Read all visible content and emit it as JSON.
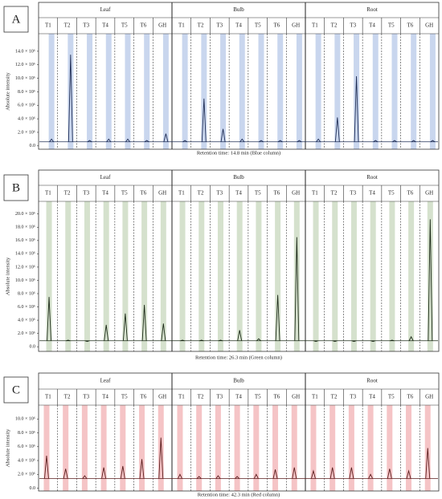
{
  "chart_data": [
    {
      "type": "line",
      "label": "A",
      "ylabel": "Absolute intensity",
      "xlabel": "Retention time: 14.8 min (Blue column)",
      "band_color": "#c9d6ee",
      "baseline": 600000,
      "categories": [
        "T1",
        "T2",
        "T3",
        "T4",
        "T5",
        "T6",
        "GH"
      ],
      "series": [
        {
          "name": "Leaf",
          "color": "#1f2d55",
          "values": [
            1000000,
            13500000,
            800000,
            1000000,
            1000000,
            800000,
            1800000
          ]
        },
        {
          "name": "Bulb",
          "color": "#1f2d55",
          "values": [
            800000,
            7000000,
            2500000,
            1000000,
            800000,
            800000,
            800000
          ]
        },
        {
          "name": "Root",
          "color": "#1f2d55",
          "values": [
            1000000,
            4200000,
            10300000,
            800000,
            800000,
            800000,
            800000
          ]
        }
      ],
      "ylim": [
        -500000,
        16600000
      ],
      "yticks": [
        {
          "value": 0,
          "label": "0.0"
        },
        {
          "value": 2000000,
          "label": "2.0 × 10⁶"
        },
        {
          "value": 4000000,
          "label": "4.0 × 10⁶"
        },
        {
          "value": 6000000,
          "label": "6.0 × 10⁶"
        },
        {
          "value": 8000000,
          "label": "8.0 × 10⁶"
        },
        {
          "value": 10000000,
          "label": "10.0 × 10⁶"
        },
        {
          "value": 12000000,
          "label": "12.0 × 10⁶"
        },
        {
          "value": 14000000,
          "label": "14.0 × 10⁶"
        }
      ]
    },
    {
      "type": "line",
      "label": "B",
      "ylabel": "Absolute intensity",
      "xlabel": "Retention time: 26.3 min (Green column)",
      "band_color": "#d5e1cd",
      "baseline": 900000,
      "categories": [
        "T1",
        "T2",
        "T3",
        "T4",
        "T5",
        "T6",
        "GH"
      ],
      "series": [
        {
          "name": "Leaf",
          "color": "#1c2a18",
          "values": [
            7500000,
            1000000,
            800000,
            3300000,
            5000000,
            6300000,
            3500000
          ]
        },
        {
          "name": "Bulb",
          "color": "#1c2a18",
          "values": [
            1000000,
            1000000,
            1000000,
            2500000,
            1200000,
            7800000,
            16500000
          ]
        },
        {
          "name": "Root",
          "color": "#1c2a18",
          "values": [
            800000,
            800000,
            800000,
            800000,
            1000000,
            1500000,
            19200000
          ]
        }
      ],
      "ylim": [
        -700000,
        21900000
      ],
      "yticks": [
        {
          "value": 0,
          "label": "0.0"
        },
        {
          "value": 2000000,
          "label": "2.0 × 10⁶"
        },
        {
          "value": 4000000,
          "label": "4.0 × 10⁶"
        },
        {
          "value": 6000000,
          "label": "6.0 × 10⁶"
        },
        {
          "value": 8000000,
          "label": "8.0 × 10⁶"
        },
        {
          "value": 10000000,
          "label": "10.0 × 10⁶"
        },
        {
          "value": 12000000,
          "label": "12.0 × 10⁶"
        },
        {
          "value": 14000000,
          "label": "14.0 × 10⁶"
        },
        {
          "value": 16000000,
          "label": "16.0 × 10⁶"
        },
        {
          "value": 18000000,
          "label": "18.0 × 10⁶"
        },
        {
          "value": 20000000,
          "label": "20.0 × 10⁶"
        }
      ]
    },
    {
      "type": "line",
      "label": "C",
      "ylabel": "Absolute intensity",
      "xlabel": "Retention time: 42.3 min (Red column)",
      "band_color": "#f5c4c6",
      "baseline": 1400000,
      "categories": [
        "T1",
        "T2",
        "T3",
        "T4",
        "T5",
        "T6",
        "GH"
      ],
      "series": [
        {
          "name": "Leaf",
          "color": "#5a1c1c",
          "values": [
            4700000,
            2800000,
            1800000,
            3000000,
            3200000,
            4200000,
            7300000
          ]
        },
        {
          "name": "Bulb",
          "color": "#5a1c1c",
          "values": [
            2000000,
            1700000,
            1800000,
            1700000,
            2000000,
            2700000,
            3000000
          ]
        },
        {
          "name": "Root",
          "color": "#5a1c1c",
          "values": [
            2500000,
            3000000,
            3000000,
            2000000,
            2800000,
            2500000,
            5800000
          ]
        }
      ],
      "ylim": [
        -400000,
        12000000
      ],
      "yticks": [
        {
          "value": 0,
          "label": "0.0"
        },
        {
          "value": 2000000,
          "label": "2.0 × 10⁶"
        },
        {
          "value": 4000000,
          "label": "4.0 × 10⁶"
        },
        {
          "value": 6000000,
          "label": "6.0 × 10⁶"
        },
        {
          "value": 8000000,
          "label": "8.0 × 10⁶"
        },
        {
          "value": 10000000,
          "label": "10.0 × 10⁶"
        }
      ]
    }
  ]
}
